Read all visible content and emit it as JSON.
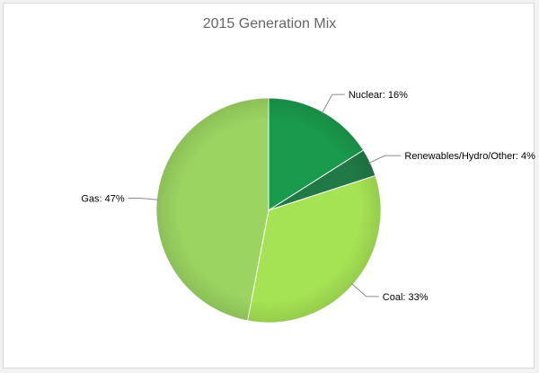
{
  "chart_data": {
    "type": "pie",
    "title": "2015 Generation Mix",
    "series": [
      {
        "name": "Nuclear",
        "value": 16,
        "label": "Nuclear: 16%",
        "color": "#1a9a4c"
      },
      {
        "name": "Renewables/Hydro/Other",
        "value": 4,
        "label": "Renewables/Hydro/Other: 4%",
        "color": "#217a45"
      },
      {
        "name": "Coal",
        "value": 33,
        "label": "Coal: 33%",
        "color": "#a6e354"
      },
      {
        "name": "Gas",
        "value": 47,
        "label": "Gas: 47%",
        "color": "#9bd461"
      }
    ],
    "legend": "none",
    "grid": false
  }
}
